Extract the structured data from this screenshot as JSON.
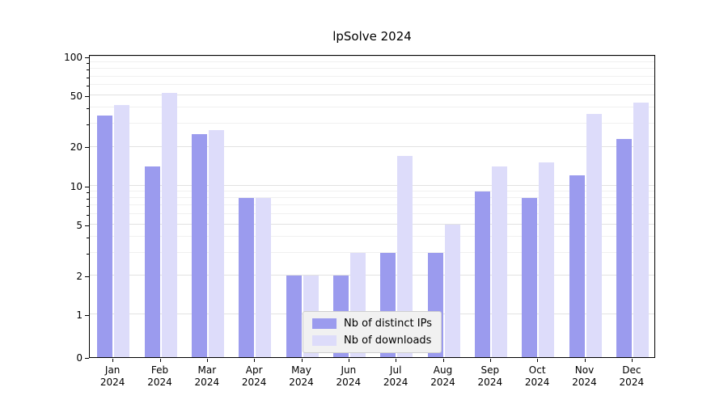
{
  "chart_data": {
    "type": "bar",
    "title": "lpSolve 2024",
    "year": "2024",
    "months": [
      "Jan",
      "Feb",
      "Mar",
      "Apr",
      "May",
      "Jun",
      "Jul",
      "Aug",
      "Sep",
      "Oct",
      "Nov",
      "Dec"
    ],
    "series": [
      {
        "name": "Nb of distinct IPs",
        "color": "#9b9bee",
        "values": [
          35,
          14,
          25,
          8,
          2,
          2,
          3,
          3,
          9,
          8,
          12,
          23
        ]
      },
      {
        "name": "Nb of downloads",
        "color": "#dddcfa",
        "values": [
          42,
          52,
          27,
          8,
          2,
          3,
          17,
          5,
          14,
          15,
          36,
          44
        ]
      }
    ],
    "yticks": [
      0,
      1,
      2,
      5,
      10,
      20,
      50,
      100
    ],
    "ylim": [
      0,
      100
    ],
    "scale": "symlog",
    "grid": true,
    "legend_position": "bottom-center"
  },
  "colors": {
    "grid_major": "#e2e2e2",
    "grid_minor": "#f0f0f0",
    "axis": "#000000",
    "background": "#ffffff",
    "legend_background": "#f1f1f1"
  }
}
